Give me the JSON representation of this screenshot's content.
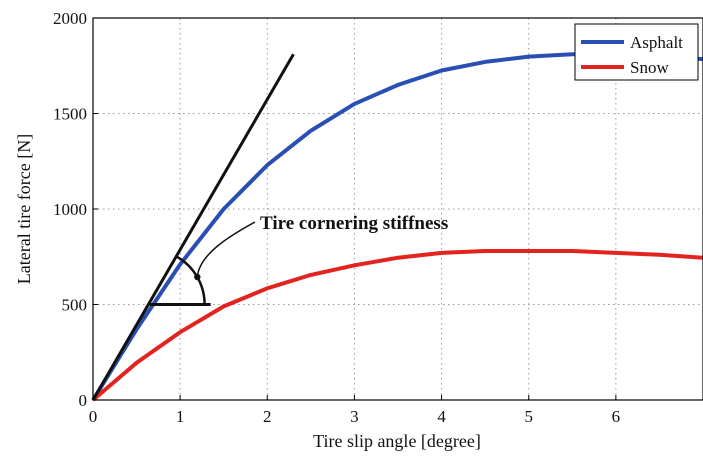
{
  "chart_data": {
    "type": "line",
    "xlabel": "Tire slip angle [degree]",
    "ylabel": "Lateral tire force [N]",
    "xlim": [
      0,
      7
    ],
    "ylim": [
      0,
      2000
    ],
    "xticks": [
      "0",
      "1",
      "2",
      "3",
      "4",
      "5",
      "6"
    ],
    "yticks": [
      "0",
      "500",
      "1000",
      "1500",
      "2000"
    ],
    "grid": true,
    "legend_position": "top-right",
    "series": [
      {
        "name": "Asphalt",
        "color": "#2a4fb4",
        "x": [
          0,
          0.5,
          1.0,
          1.5,
          2.0,
          2.5,
          3.0,
          3.5,
          4.0,
          4.5,
          5.0,
          5.5,
          6.0,
          6.5,
          7.0
        ],
        "y": [
          0,
          370,
          710,
          1000,
          1230,
          1410,
          1550,
          1650,
          1725,
          1770,
          1798,
          1810,
          1810,
          1800,
          1785
        ]
      },
      {
        "name": "Snow",
        "color": "#e32320",
        "x": [
          0,
          0.5,
          1.0,
          1.5,
          2.0,
          2.5,
          3.0,
          3.5,
          4.0,
          4.5,
          5.0,
          5.5,
          6.0,
          6.5,
          7.0
        ],
        "y": [
          0,
          195,
          355,
          490,
          585,
          655,
          705,
          745,
          770,
          780,
          780,
          780,
          770,
          760,
          745
        ]
      }
    ],
    "annotation": {
      "text": "Tire cornering stiffness",
      "tangent_line": {
        "x": [
          0,
          2.3
        ],
        "y": [
          0,
          1810
        ]
      },
      "reference_line": {
        "x": [
          0.65,
          1.35
        ],
        "y": [
          500,
          500
        ]
      }
    }
  }
}
